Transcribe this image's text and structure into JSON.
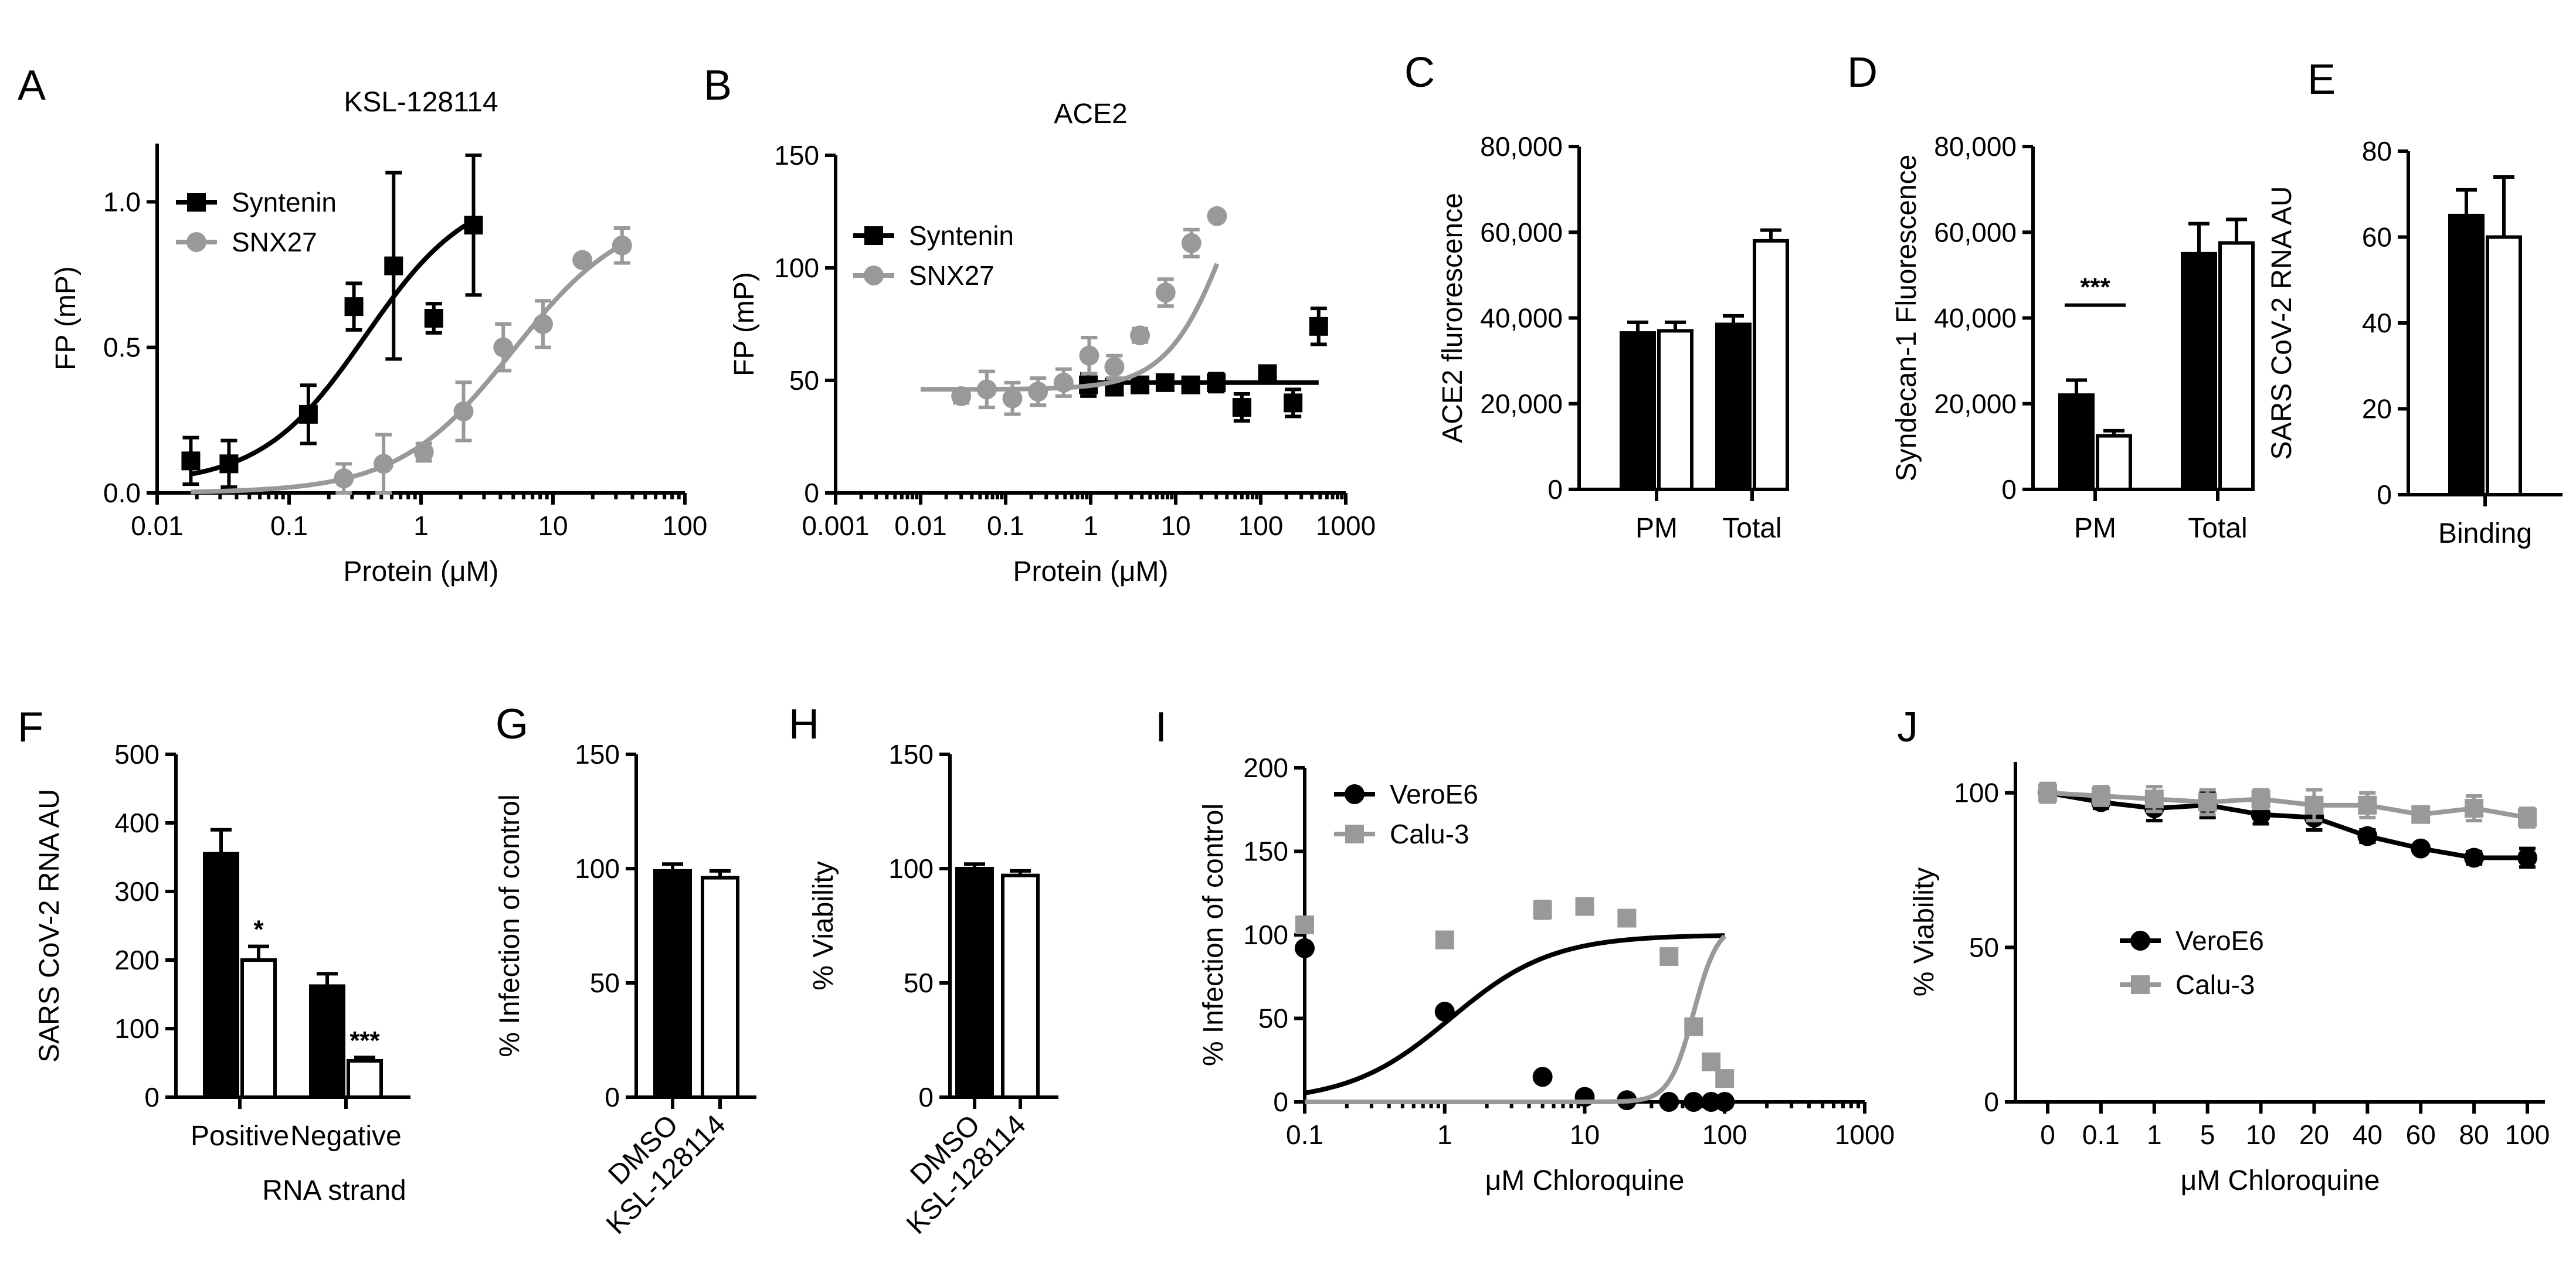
{
  "colors": {
    "black": "#000000",
    "gray": "#999999",
    "white": "#ffffff"
  },
  "chart_data": [
    {
      "panel": "A",
      "type": "scatter",
      "title": "KSL-128114",
      "xlabel": "Protein (μM)",
      "ylabel": "FP  (mP)",
      "xscale": "log",
      "xlim": [
        0.01,
        100
      ],
      "ylim": [
        0,
        1.2
      ],
      "xticks": [
        0.01,
        0.1,
        1,
        10,
        100
      ],
      "xtick_labels": [
        "0.01",
        "0.1",
        "1",
        "10",
        "100"
      ],
      "yticks": [
        0,
        0.5,
        1.0
      ],
      "ytick_labels": [
        "0.0",
        "0.5",
        "1.0"
      ],
      "legend_position": "top-left",
      "series": [
        {
          "name": "Syntenin",
          "color": "#000000",
          "marker": "square",
          "points": [
            [
              0.018,
              0.11,
              0.08
            ],
            [
              0.035,
              0.1,
              0.08
            ],
            [
              0.14,
              0.27,
              0.1
            ],
            [
              0.31,
              0.64,
              0.08
            ],
            [
              0.62,
              0.78,
              0.32
            ],
            [
              1.25,
              0.6,
              0.05
            ],
            [
              2.5,
              0.92,
              0.24
            ]
          ],
          "fit": {
            "bottom": 0.03,
            "top": 1.05,
            "ec50": 0.38,
            "hill": 1.1,
            "xrange": [
              0.018,
              2.5
            ]
          }
        },
        {
          "name": "SNX27",
          "color": "#999999",
          "marker": "circle",
          "points": [
            [
              0.26,
              0.05,
              0.05
            ],
            [
              0.52,
              0.1,
              0.1
            ],
            [
              1.05,
              0.14,
              0.03
            ],
            [
              2.1,
              0.28,
              0.1
            ],
            [
              4.2,
              0.5,
              0.08
            ],
            [
              8.4,
              0.58,
              0.08
            ],
            [
              16.7,
              0.8,
              0.0
            ],
            [
              33.4,
              0.85,
              0.06
            ]
          ],
          "fit": {
            "bottom": 0.0,
            "top": 0.98,
            "ec50": 5.0,
            "hill": 1.0,
            "xrange": [
              0.018,
              33.4
            ]
          }
        }
      ]
    },
    {
      "panel": "B",
      "type": "scatter",
      "title": "ACE2",
      "xlabel": "Protein (μM)",
      "ylabel": "FP (mP)",
      "xscale": "log",
      "xlim": [
        0.001,
        1000
      ],
      "ylim": [
        0,
        150
      ],
      "xticks": [
        0.001,
        0.01,
        0.1,
        1,
        10,
        100,
        1000
      ],
      "xtick_labels": [
        "0.001",
        "0.01",
        "0.1",
        "1",
        "10",
        "100",
        "1000"
      ],
      "yticks": [
        0,
        50,
        100,
        150
      ],
      "ytick_labels": [
        "0",
        "50",
        "100",
        "150"
      ],
      "legend_position": "middle-left",
      "series": [
        {
          "name": "Syntenin",
          "color": "#000000",
          "marker": "square",
          "points": [
            [
              0.94,
              48,
              5
            ],
            [
              1.9,
              47,
              3
            ],
            [
              3.8,
              48,
              3
            ],
            [
              7.5,
              49,
              3
            ],
            [
              15,
              48,
              3
            ],
            [
              30,
              49,
              4
            ],
            [
              60,
              38,
              6
            ],
            [
              120,
              53,
              3
            ],
            [
              240,
              40,
              6
            ],
            [
              480,
              74,
              8
            ]
          ],
          "fit": {
            "bottom": 49,
            "top": 49,
            "ec50": 1,
            "hill": 1,
            "xrange": [
              0.94,
              480
            ]
          }
        },
        {
          "name": "SNX27",
          "color": "#999999",
          "marker": "circle",
          "points": [
            [
              0.03,
              43,
              3
            ],
            [
              0.06,
              46,
              8
            ],
            [
              0.12,
              42,
              7
            ],
            [
              0.24,
              45,
              6
            ],
            [
              0.48,
              49,
              6
            ],
            [
              0.96,
              61,
              8
            ],
            [
              1.9,
              56,
              5
            ],
            [
              3.8,
              70,
              3
            ],
            [
              7.6,
              89,
              6
            ],
            [
              15.3,
              111,
              6
            ],
            [
              30.6,
              123,
              2
            ]
          ],
          "fit": {
            "bottom": 46,
            "top": 200,
            "ec50": 50,
            "hill": 1.15,
            "xrange": [
              0.01,
              30.6
            ]
          }
        }
      ]
    },
    {
      "panel": "C",
      "type": "bar",
      "ylabel": "ACE2 flurorescence",
      "ylim": [
        0,
        80000
      ],
      "yticks": [
        0,
        20000,
        40000,
        60000,
        80000
      ],
      "ytick_labels": [
        "0",
        "20,000",
        "40,000",
        "60,000",
        "80,000"
      ],
      "groups": [
        "PM",
        "Total"
      ],
      "bars": [
        {
          "group": 0,
          "fill": "#000000",
          "value": 36500,
          "err": 2500
        },
        {
          "group": 0,
          "fill": "#ffffff",
          "value": 37000,
          "err": 2000
        },
        {
          "group": 1,
          "fill": "#000000",
          "value": 38500,
          "err": 2000
        },
        {
          "group": 1,
          "fill": "#ffffff",
          "value": 58000,
          "err": 2500
        }
      ]
    },
    {
      "panel": "D",
      "type": "bar",
      "ylabel": "Syndecan-1 Fluorescence",
      "ylim": [
        0,
        80000
      ],
      "yticks": [
        0,
        20000,
        40000,
        60000,
        80000
      ],
      "ytick_labels": [
        "0",
        "20,000",
        "40,000",
        "60,000",
        "80,000"
      ],
      "groups": [
        "PM",
        "Total"
      ],
      "bars": [
        {
          "group": 0,
          "fill": "#000000",
          "value": 22000,
          "err": 3500
        },
        {
          "group": 0,
          "fill": "#ffffff",
          "value": 12500,
          "err": 1200
        },
        {
          "group": 1,
          "fill": "#000000",
          "value": 55000,
          "err": 7000
        },
        {
          "group": 1,
          "fill": "#ffffff",
          "value": 57500,
          "err": 5500
        }
      ],
      "significance": [
        {
          "label": "***",
          "value": 43000,
          "from_bar": 0,
          "to_bar": 1
        }
      ]
    },
    {
      "panel": "E",
      "type": "bar",
      "ylabel": "SARS CoV-2 RNA AU",
      "ylim": [
        0,
        80
      ],
      "yticks": [
        0,
        20,
        40,
        60,
        80
      ],
      "ytick_labels": [
        "0",
        "20",
        "40",
        "60",
        "80"
      ],
      "groups": [
        "Binding"
      ],
      "bars": [
        {
          "group": 0,
          "fill": "#000000",
          "value": 65,
          "err": 6
        },
        {
          "group": 0,
          "fill": "#ffffff",
          "value": 60,
          "err": 14
        }
      ]
    },
    {
      "panel": "F",
      "type": "bar",
      "ylabel": "SARS CoV-2 RNA AU",
      "xlabel": "RNA strand",
      "ylim": [
        0,
        500
      ],
      "yticks": [
        0,
        100,
        200,
        300,
        400,
        500
      ],
      "ytick_labels": [
        "0",
        "100",
        "200",
        "300",
        "400",
        "500"
      ],
      "groups": [
        "Positive",
        "Negative"
      ],
      "bars": [
        {
          "group": 0,
          "fill": "#000000",
          "value": 355,
          "err": 35,
          "sig": ""
        },
        {
          "group": 0,
          "fill": "#ffffff",
          "value": 200,
          "err": 20,
          "sig": "*"
        },
        {
          "group": 1,
          "fill": "#000000",
          "value": 162,
          "err": 18,
          "sig": ""
        },
        {
          "group": 1,
          "fill": "#ffffff",
          "value": 53,
          "err": 5,
          "sig": "***"
        }
      ]
    },
    {
      "panel": "G",
      "type": "bar",
      "ylabel": "% Infection of control",
      "ylim": [
        0,
        150
      ],
      "yticks": [
        0,
        50,
        100,
        150
      ],
      "ytick_labels": [
        "0",
        "50",
        "100",
        "150"
      ],
      "categories": [
        "DMSO",
        "KSL-128114"
      ],
      "bars": [
        {
          "fill": "#000000",
          "value": 99,
          "err": 3
        },
        {
          "fill": "#ffffff",
          "value": 96,
          "err": 3
        }
      ]
    },
    {
      "panel": "H",
      "type": "bar",
      "ylabel": "% Viability",
      "ylim": [
        0,
        150
      ],
      "yticks": [
        0,
        50,
        100,
        150
      ],
      "ytick_labels": [
        "0",
        "50",
        "100",
        "150"
      ],
      "categories": [
        "DMSO",
        "KSL-128114"
      ],
      "bars": [
        {
          "fill": "#000000",
          "value": 100,
          "err": 2
        },
        {
          "fill": "#ffffff",
          "value": 97,
          "err": 2
        }
      ]
    },
    {
      "panel": "I",
      "type": "scatter",
      "xlabel": "μM Chloroquine",
      "ylabel": "% Infection of control",
      "xscale": "log",
      "xlim": [
        0.1,
        1000
      ],
      "ylim": [
        0,
        200
      ],
      "xticks": [
        0.1,
        1,
        10,
        100,
        1000
      ],
      "xtick_labels": [
        "0.1",
        "1",
        "10",
        "100",
        "1000"
      ],
      "yticks": [
        0,
        50,
        100,
        150,
        200
      ],
      "ytick_labels": [
        "0",
        "50",
        "100",
        "150",
        "200"
      ],
      "legend_position": "top-left",
      "series": [
        {
          "name": "VeroE6",
          "color": "#000000",
          "marker": "circle",
          "points": [
            [
              0.1,
              92,
              0
            ],
            [
              1,
              54,
              0
            ],
            [
              5,
              15,
              0
            ],
            [
              10,
              3,
              0
            ],
            [
              20,
              1,
              0
            ],
            [
              40,
              0,
              0
            ],
            [
              60,
              0,
              0
            ],
            [
              80,
              0,
              0
            ],
            [
              100,
              0,
              0
            ]
          ],
          "fit": {
            "bottom": 0,
            "top": 100,
            "ec50": 1.1,
            "hill": 1.2,
            "xrange": [
              0.1,
              100
            ]
          }
        },
        {
          "name": "Calu-3",
          "color": "#999999",
          "marker": "square",
          "points": [
            [
              0.1,
              106,
              0
            ],
            [
              1,
              97,
              0
            ],
            [
              5,
              115,
              5
            ],
            [
              10,
              117,
              0
            ],
            [
              20,
              110,
              0
            ],
            [
              40,
              87,
              0
            ],
            [
              60,
              45,
              0
            ],
            [
              80,
              24,
              0
            ],
            [
              100,
              14,
              0
            ]
          ],
          "fit": {
            "bottom": 0,
            "top": 107,
            "ec50": 60,
            "hill": 5,
            "xrange": [
              0.1,
              100
            ]
          }
        }
      ]
    },
    {
      "panel": "J",
      "type": "line",
      "xlabel": "μM Chloroquine",
      "ylabel": "% Viability",
      "ylim": [
        0,
        110
      ],
      "yticks": [
        0,
        50,
        100
      ],
      "ytick_labels": [
        "0",
        "50",
        "100"
      ],
      "categories": [
        "0",
        "0.1",
        "1",
        "5",
        "10",
        "20",
        "40",
        "60",
        "80",
        "100"
      ],
      "legend_position": "center-left",
      "series": [
        {
          "name": "VeroE6",
          "color": "#000000",
          "marker": "circle",
          "values": [
            100,
            97,
            95,
            96,
            93,
            92,
            86,
            82,
            79,
            79
          ],
          "errs": [
            3,
            2,
            4,
            4,
            3,
            4,
            2,
            1,
            2,
            3
          ]
        },
        {
          "name": "Calu-3",
          "color": "#999999",
          "marker": "square",
          "values": [
            100,
            99,
            98,
            97,
            98,
            96,
            96,
            93,
            95,
            92
          ],
          "errs": [
            3,
            3,
            4,
            4,
            3,
            5,
            4,
            2,
            4,
            3
          ]
        }
      ]
    }
  ]
}
